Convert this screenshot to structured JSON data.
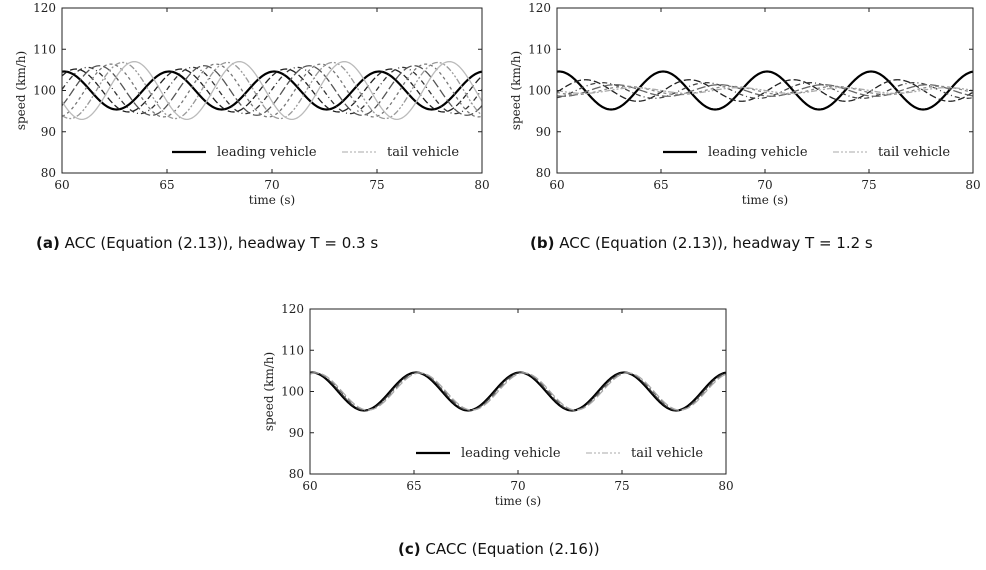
{
  "chart_data": [
    {
      "type": "line",
      "panel_label": "(a)",
      "caption": "ACC (Equation (2.13)), headway T = 0.3 s",
      "xlabel": "time (s)",
      "ylabel": "speed (km/h)",
      "xlim": [
        60,
        80
      ],
      "ylim": [
        80,
        120
      ],
      "xticks": [
        "60",
        "65",
        "70",
        "75",
        "80"
      ],
      "yticks": [
        "80",
        "90",
        "100",
        "110",
        "120"
      ],
      "legend_position": "bottom-right",
      "legend": [
        "leading vehicle",
        "tail vehicle"
      ],
      "series": [
        {
          "name": "leading vehicle",
          "color": "#000000",
          "amplitude": 4.6,
          "period": 5,
          "phase": 0
        },
        {
          "name": "",
          "color": "#222222",
          "amplitude": 5.2,
          "period": 5,
          "phase": 0.7
        },
        {
          "name": "",
          "color": "#333333",
          "amplitude": 5.6,
          "period": 5,
          "phase": 1.4
        },
        {
          "name": "",
          "color": "#555555",
          "amplitude": 6.0,
          "period": 5,
          "phase": 2.1
        },
        {
          "name": "",
          "color": "#777777",
          "amplitude": 6.4,
          "period": 5,
          "phase": 2.8
        },
        {
          "name": "",
          "color": "#999999",
          "amplitude": 6.8,
          "period": 5,
          "phase": 3.5
        },
        {
          "name": "tail vehicle",
          "color": "#bbbbbb",
          "amplitude": 7.0,
          "period": 5,
          "phase": 4.2
        }
      ]
    },
    {
      "type": "line",
      "panel_label": "(b)",
      "caption": "ACC (Equation (2.13)), headway T = 1.2 s",
      "xlabel": "time (s)",
      "ylabel": "speed (km/h)",
      "xlim": [
        60,
        80
      ],
      "ylim": [
        80,
        120
      ],
      "xticks": [
        "60",
        "65",
        "70",
        "75",
        "80"
      ],
      "yticks": [
        "80",
        "90",
        "100",
        "110",
        "120"
      ],
      "legend_position": "bottom-right",
      "legend": [
        "leading vehicle",
        "tail vehicle"
      ],
      "series": [
        {
          "name": "leading vehicle",
          "color": "#000000",
          "amplitude": 4.6,
          "period": 5,
          "phase": 0
        },
        {
          "name": "",
          "color": "#222222",
          "amplitude": 2.6,
          "period": 5,
          "phase": 1.6
        },
        {
          "name": "",
          "color": "#444444",
          "amplitude": 1.9,
          "period": 5,
          "phase": 2.6
        },
        {
          "name": "",
          "color": "#666666",
          "amplitude": 1.4,
          "period": 5,
          "phase": 3.4
        },
        {
          "name": "",
          "color": "#888888",
          "amplitude": 1.0,
          "period": 5,
          "phase": 4.1
        },
        {
          "name": "tail vehicle",
          "color": "#aaaaaa",
          "amplitude": 0.7,
          "period": 5,
          "phase": 4.6
        }
      ]
    },
    {
      "type": "line",
      "panel_label": "(c)",
      "caption": "CACC (Equation (2.16))",
      "xlabel": "time (s)",
      "ylabel": "speed (km/h)",
      "xlim": [
        60,
        80
      ],
      "ylim": [
        80,
        120
      ],
      "xticks": [
        "60",
        "65",
        "70",
        "75",
        "80"
      ],
      "yticks": [
        "80",
        "90",
        "100",
        "110",
        "120"
      ],
      "legend_position": "bottom-right",
      "legend": [
        "leading vehicle",
        "tail vehicle"
      ],
      "series": [
        {
          "name": "leading vehicle",
          "color": "#000000",
          "amplitude": 4.6,
          "period": 5,
          "phase": 0
        },
        {
          "name": "",
          "color": "#333333",
          "amplitude": 4.6,
          "period": 5,
          "phase": 0.08
        },
        {
          "name": "",
          "color": "#666666",
          "amplitude": 4.5,
          "period": 5,
          "phase": 0.16
        },
        {
          "name": "tail vehicle",
          "color": "#aaaaaa",
          "amplitude": 4.5,
          "period": 5,
          "phase": 0.24
        }
      ]
    }
  ]
}
